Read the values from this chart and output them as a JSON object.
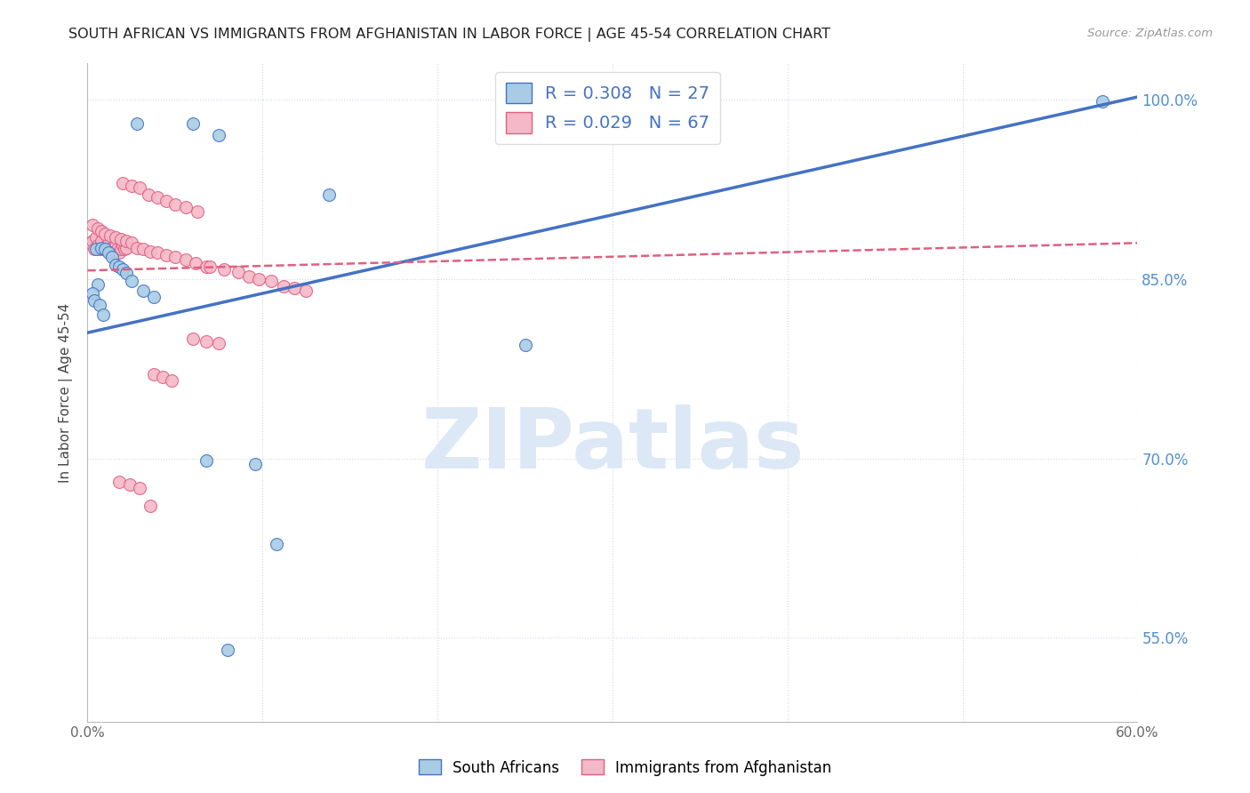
{
  "title": "SOUTH AFRICAN VS IMMIGRANTS FROM AFGHANISTAN IN LABOR FORCE | AGE 45-54 CORRELATION CHART",
  "source": "Source: ZipAtlas.com",
  "ylabel": "In Labor Force | Age 45-54",
  "xlim": [
    0.0,
    0.6
  ],
  "ylim": [
    0.48,
    1.03
  ],
  "yticks": [
    0.55,
    0.7,
    0.85,
    1.0
  ],
  "ytick_labels": [
    "55.0%",
    "70.0%",
    "85.0%",
    "100.0%"
  ],
  "xticks": [
    0.0,
    0.1,
    0.2,
    0.3,
    0.4,
    0.5,
    0.6
  ],
  "south_african_R": 0.308,
  "south_african_N": 27,
  "afghan_R": 0.029,
  "afghan_N": 67,
  "sa_color": "#a8cce4",
  "af_color": "#f4b8c8",
  "sa_line_color": "#4472c4",
  "af_line_color": "#e06080",
  "background": "#ffffff",
  "watermark": "ZIPatlas",
  "watermark_color": "#dce8f5",
  "grid_color": "#d0d8e8",
  "title_color": "#222222",
  "axis_label_color": "#444444",
  "right_tick_color": "#5090d0",
  "sa_line_x0": 0.0,
  "sa_line_y0": 0.805,
  "sa_line_x1": 0.6,
  "sa_line_y1": 1.002,
  "af_line_x0": 0.0,
  "af_line_y0": 0.857,
  "af_line_x1": 0.6,
  "af_line_y1": 0.88,
  "sa_x": [
    0.028,
    0.06,
    0.075,
    0.005,
    0.008,
    0.01,
    0.012,
    0.014,
    0.016,
    0.018,
    0.02,
    0.022,
    0.025,
    0.006,
    0.003,
    0.004,
    0.007,
    0.009,
    0.25,
    0.138,
    0.58,
    0.032,
    0.038,
    0.068,
    0.08,
    0.096,
    0.108
  ],
  "sa_y": [
    0.98,
    0.98,
    0.97,
    0.875,
    0.876,
    0.875,
    0.872,
    0.868,
    0.862,
    0.86,
    0.858,
    0.855,
    0.848,
    0.845,
    0.838,
    0.832,
    0.828,
    0.82,
    0.795,
    0.92,
    0.998,
    0.84,
    0.835,
    0.698,
    0.54,
    0.695,
    0.628
  ],
  "af_x": [
    0.002,
    0.003,
    0.004,
    0.005,
    0.006,
    0.007,
    0.008,
    0.009,
    0.01,
    0.011,
    0.012,
    0.013,
    0.014,
    0.015,
    0.016,
    0.017,
    0.018,
    0.019,
    0.02,
    0.021,
    0.022,
    0.003,
    0.006,
    0.008,
    0.01,
    0.013,
    0.016,
    0.019,
    0.022,
    0.025,
    0.028,
    0.032,
    0.036,
    0.04,
    0.045,
    0.05,
    0.056,
    0.062,
    0.068,
    0.02,
    0.025,
    0.03,
    0.035,
    0.04,
    0.045,
    0.05,
    0.056,
    0.063,
    0.07,
    0.078,
    0.086,
    0.092,
    0.098,
    0.105,
    0.112,
    0.118,
    0.125,
    0.06,
    0.068,
    0.075,
    0.038,
    0.043,
    0.048,
    0.018,
    0.024,
    0.03,
    0.036
  ],
  "af_y": [
    0.88,
    0.882,
    0.875,
    0.885,
    0.878,
    0.875,
    0.882,
    0.875,
    0.876,
    0.878,
    0.88,
    0.875,
    0.872,
    0.875,
    0.878,
    0.875,
    0.872,
    0.875,
    0.878,
    0.875,
    0.876,
    0.895,
    0.892,
    0.89,
    0.888,
    0.886,
    0.885,
    0.883,
    0.882,
    0.88,
    0.876,
    0.875,
    0.873,
    0.872,
    0.87,
    0.868,
    0.866,
    0.863,
    0.86,
    0.93,
    0.928,
    0.926,
    0.92,
    0.918,
    0.915,
    0.912,
    0.91,
    0.906,
    0.86,
    0.858,
    0.856,
    0.852,
    0.85,
    0.848,
    0.844,
    0.842,
    0.84,
    0.8,
    0.798,
    0.796,
    0.77,
    0.768,
    0.765,
    0.68,
    0.678,
    0.675,
    0.66
  ]
}
